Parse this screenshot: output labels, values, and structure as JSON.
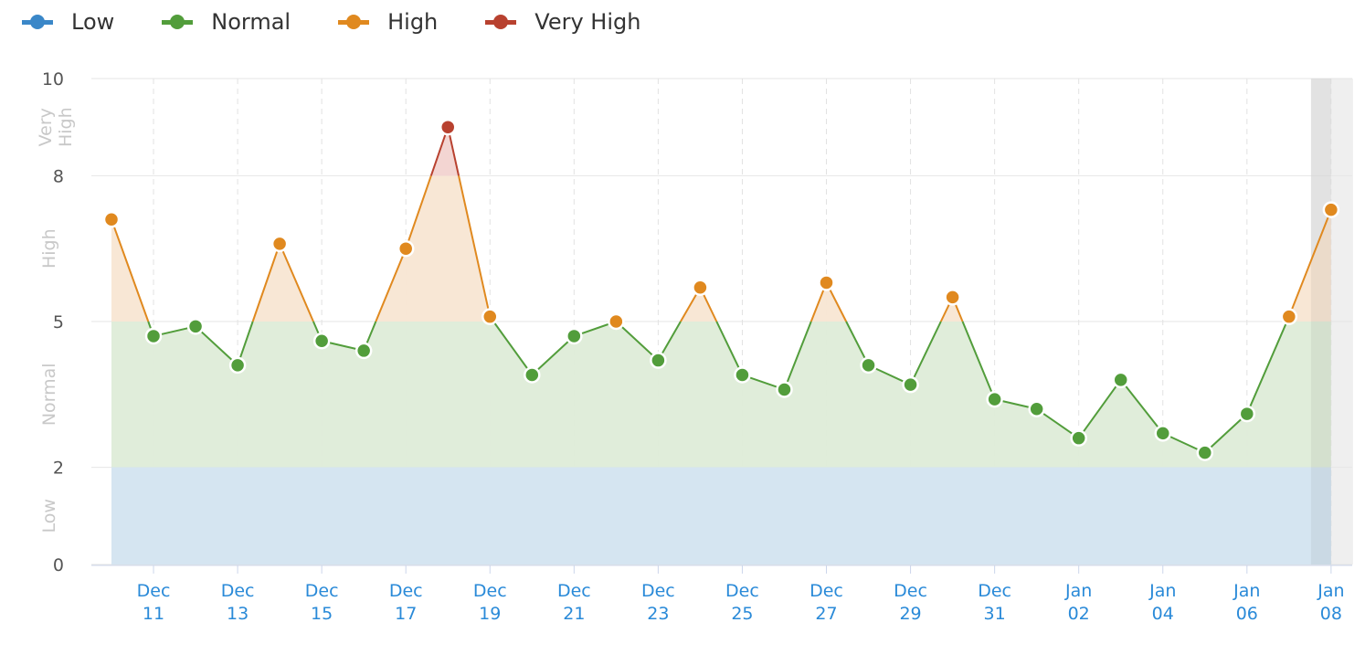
{
  "legend": [
    {
      "label": "Low",
      "color": "#3a87c8"
    },
    {
      "label": "Normal",
      "color": "#529d3b"
    },
    {
      "label": "High",
      "color": "#e0891f"
    },
    {
      "label": "Very High",
      "color": "#b8412f"
    }
  ],
  "chart_data": {
    "type": "line",
    "x": [
      "Dec 10",
      "Dec 11",
      "Dec 12",
      "Dec 13",
      "Dec 14",
      "Dec 15",
      "Dec 16",
      "Dec 17",
      "Dec 18",
      "Dec 19",
      "Dec 20",
      "Dec 21",
      "Dec 22",
      "Dec 23",
      "Dec 24",
      "Dec 25",
      "Dec 26",
      "Dec 27",
      "Dec 28",
      "Dec 29",
      "Dec 30",
      "Dec 31",
      "Jan 01",
      "Jan 02",
      "Jan 03",
      "Jan 04",
      "Jan 05",
      "Jan 06",
      "Jan 07",
      "Jan 08"
    ],
    "values": [
      7.1,
      4.7,
      4.9,
      4.1,
      6.6,
      4.6,
      4.4,
      6.5,
      9.0,
      5.1,
      3.9,
      4.7,
      5.0,
      4.2,
      5.7,
      3.9,
      3.6,
      5.8,
      4.1,
      3.7,
      5.5,
      3.4,
      3.2,
      2.6,
      3.8,
      2.7,
      2.3,
      3.1,
      5.1,
      7.3
    ],
    "x_tick_labels": [
      [
        "Dec",
        "11"
      ],
      [
        "Dec",
        "13"
      ],
      [
        "Dec",
        "15"
      ],
      [
        "Dec",
        "17"
      ],
      [
        "Dec",
        "19"
      ],
      [
        "Dec",
        "21"
      ],
      [
        "Dec",
        "23"
      ],
      [
        "Dec",
        "25"
      ],
      [
        "Dec",
        "27"
      ],
      [
        "Dec",
        "29"
      ],
      [
        "Dec",
        "31"
      ],
      [
        "Jan",
        "02"
      ],
      [
        "Jan",
        "04"
      ],
      [
        "Jan",
        "06"
      ],
      [
        "Jan",
        "08"
      ]
    ],
    "y_ticks": [
      "0",
      "2",
      "5",
      "8",
      "10"
    ],
    "ylim": [
      0,
      10
    ],
    "bands": [
      {
        "name": "Low",
        "from": 0,
        "to": 2,
        "fill": "#d5e5f1",
        "color": "#3a87c8"
      },
      {
        "name": "Normal",
        "from": 2,
        "to": 5,
        "fill": "#deecd8",
        "color": "#529d3b"
      },
      {
        "name": "High",
        "from": 5,
        "to": 8,
        "fill": "#f8e6d3",
        "color": "#e0891f"
      },
      {
        "name": "Very High",
        "from": 8,
        "to": 10,
        "fill": "#f2d3d0",
        "color": "#b8412f"
      }
    ],
    "highlighted": "Jan 08",
    "legend_position": "top-left",
    "grid": true
  }
}
